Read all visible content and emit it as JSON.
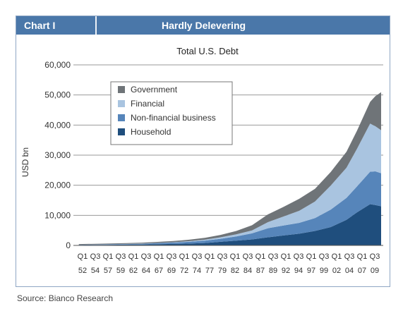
{
  "header": {
    "label": "Chart I",
    "title": "Hardly Delevering"
  },
  "source": "Source: Bianco Research",
  "chart_data": {
    "type": "area",
    "title": "Total U.S. Debt",
    "ylabel": "USD bn",
    "ylim": [
      0,
      60000
    ],
    "yticks": [
      "0",
      "10,000",
      "20,000",
      "30,000",
      "40,000",
      "50,000",
      "60,000"
    ],
    "grid": true,
    "legend_position": "top-left",
    "xtick_top": [
      "Q1",
      "Q3",
      "Q1",
      "Q3",
      "Q1",
      "Q3",
      "Q1",
      "Q3",
      "Q1",
      "Q3",
      "Q1",
      "Q3",
      "Q1",
      "Q3",
      "Q1",
      "Q3",
      "Q1",
      "Q3",
      "Q1",
      "Q3",
      "Q1",
      "Q3",
      "Q1",
      "Q3"
    ],
    "xtick_bottom": [
      "52",
      "54",
      "57",
      "59",
      "62",
      "64",
      "67",
      "69",
      "72",
      "74",
      "77",
      "79",
      "82",
      "84",
      "87",
      "89",
      "92",
      "94",
      "97",
      "99",
      "02",
      "04",
      "07",
      "09"
    ],
    "x": [
      1952,
      1955,
      1958,
      1961,
      1964,
      1967,
      1970,
      1973,
      1976,
      1979,
      1982,
      1985,
      1988,
      1991,
      1994,
      1997,
      2000,
      2003,
      2005,
      2007.5,
      2008.5,
      2009.6
    ],
    "series": [
      {
        "name": "Household",
        "color": "#1f4e7d",
        "values": [
          100,
          150,
          200,
          250,
          300,
          400,
          500,
          600,
          800,
          1200,
          1600,
          2000,
          2700,
          3300,
          3900,
          4800,
          6100,
          8500,
          11000,
          13700,
          13400,
          13000
        ]
      },
      {
        "name": "Non-financial business",
        "color": "#5685ba",
        "values": [
          100,
          120,
          150,
          200,
          250,
          350,
          450,
          600,
          800,
          1000,
          1400,
          2000,
          3000,
          3300,
          3600,
          4300,
          5800,
          7300,
          8600,
          10800,
          11200,
          11000
        ]
      },
      {
        "name": "Financial",
        "color": "#a9c4e0",
        "values": [
          20,
          30,
          40,
          50,
          60,
          80,
          100,
          200,
          300,
          500,
          700,
          1000,
          2000,
          3000,
          4000,
          5500,
          8000,
          10000,
          12500,
          16000,
          15000,
          14300
        ]
      },
      {
        "name": "Government",
        "color": "#6f7478",
        "values": [
          220,
          250,
          250,
          280,
          300,
          350,
          400,
          500,
          600,
          800,
          1100,
          1700,
          2600,
          3200,
          4000,
          4200,
          4500,
          5300,
          6000,
          7200,
          10000,
          12600
        ]
      }
    ]
  }
}
